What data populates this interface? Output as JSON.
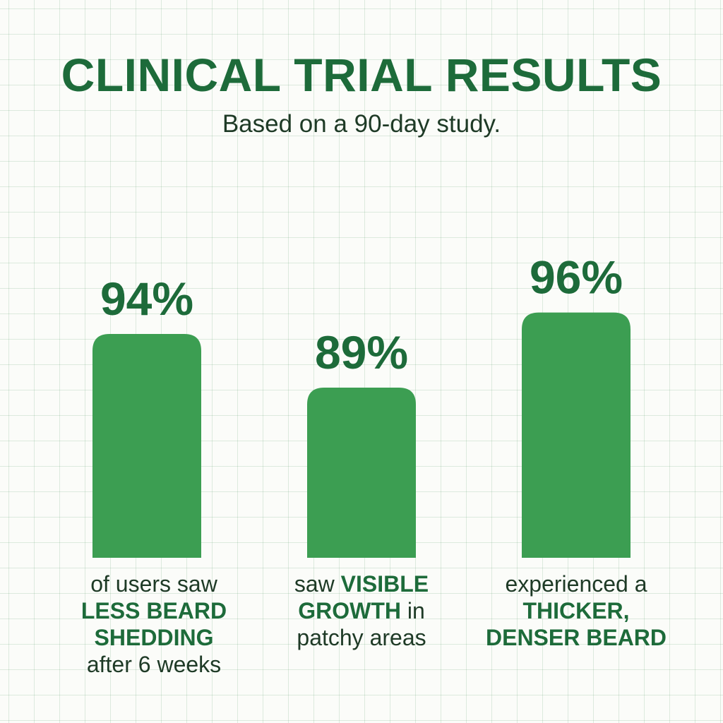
{
  "colors": {
    "primary": "#1d6b3a",
    "bar": "#3c9e52",
    "text_dark": "#1e3a26"
  },
  "header": {
    "title": "CLINICAL TRIAL RESULTS",
    "subtitle": "Based on a 90-day study."
  },
  "chart_data": {
    "type": "bar",
    "title": "CLINICAL TRIAL RESULTS",
    "subtitle": "Based on a 90-day study.",
    "unit": "%",
    "ylim": [
      0,
      100
    ],
    "grid": false,
    "categories": [
      "of users saw LESS BEARD SHEDDING after 6 weeks",
      "saw VISIBLE GROWTH in patchy areas",
      "experienced a THICKER, DENSER BEARD"
    ],
    "values": [
      94,
      89,
      96
    ],
    "labels": [
      "94%",
      "89%",
      "96%"
    ]
  },
  "captions": [
    {
      "lines": [
        [
          {
            "text": "of users saw",
            "bold": false
          }
        ],
        [
          {
            "text": "LESS BEARD",
            "bold": true
          }
        ],
        [
          {
            "text": "SHEDDING",
            "bold": true
          }
        ],
        [
          {
            "text": "after 6 weeks",
            "bold": false
          }
        ]
      ]
    },
    {
      "lines": [
        [
          {
            "text": "saw ",
            "bold": false
          },
          {
            "text": "VISIBLE",
            "bold": true
          }
        ],
        [
          {
            "text": "GROWTH",
            "bold": true
          },
          {
            "text": " in",
            "bold": false
          }
        ],
        [
          {
            "text": "patchy areas",
            "bold": false
          }
        ]
      ]
    },
    {
      "lines": [
        [
          {
            "text": "experienced a",
            "bold": false
          }
        ],
        [
          {
            "text": "THICKER,",
            "bold": true
          }
        ],
        [
          {
            "text": "DENSER BEARD",
            "bold": true
          }
        ]
      ]
    }
  ]
}
